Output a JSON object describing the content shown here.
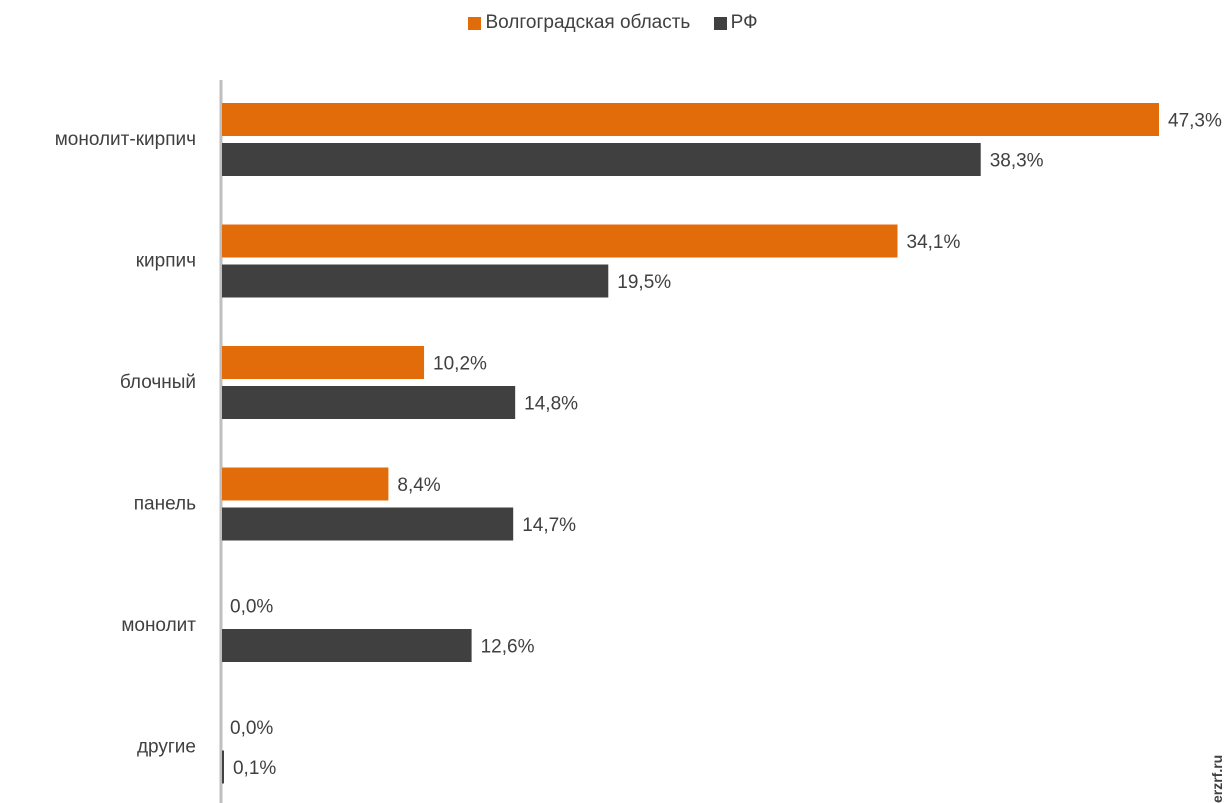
{
  "chart_data": {
    "type": "bar",
    "orientation": "horizontal",
    "categories": [
      "монолит-кирпич",
      "кирпич",
      "блочный",
      "панель",
      "монолит",
      "другие"
    ],
    "series": [
      {
        "name": "Волгоградская область",
        "values": [
          47.3,
          34.1,
          10.2,
          8.4,
          0.0,
          0.0
        ],
        "labels": [
          "47,3%",
          "34,1%",
          "10,2%",
          "8,4%",
          "0,0%",
          "0,0%"
        ],
        "color": "#e36c0a"
      },
      {
        "name": "РФ",
        "values": [
          38.3,
          19.5,
          14.8,
          14.7,
          12.6,
          0.1
        ],
        "labels": [
          "38,3%",
          "19,5%",
          "14,8%",
          "14,7%",
          "12,6%",
          "0,1%"
        ],
        "color": "#404040"
      }
    ],
    "xlim": [
      0,
      48
    ],
    "legend_position": "top",
    "grid": false
  },
  "watermark": "erzrf.ru"
}
